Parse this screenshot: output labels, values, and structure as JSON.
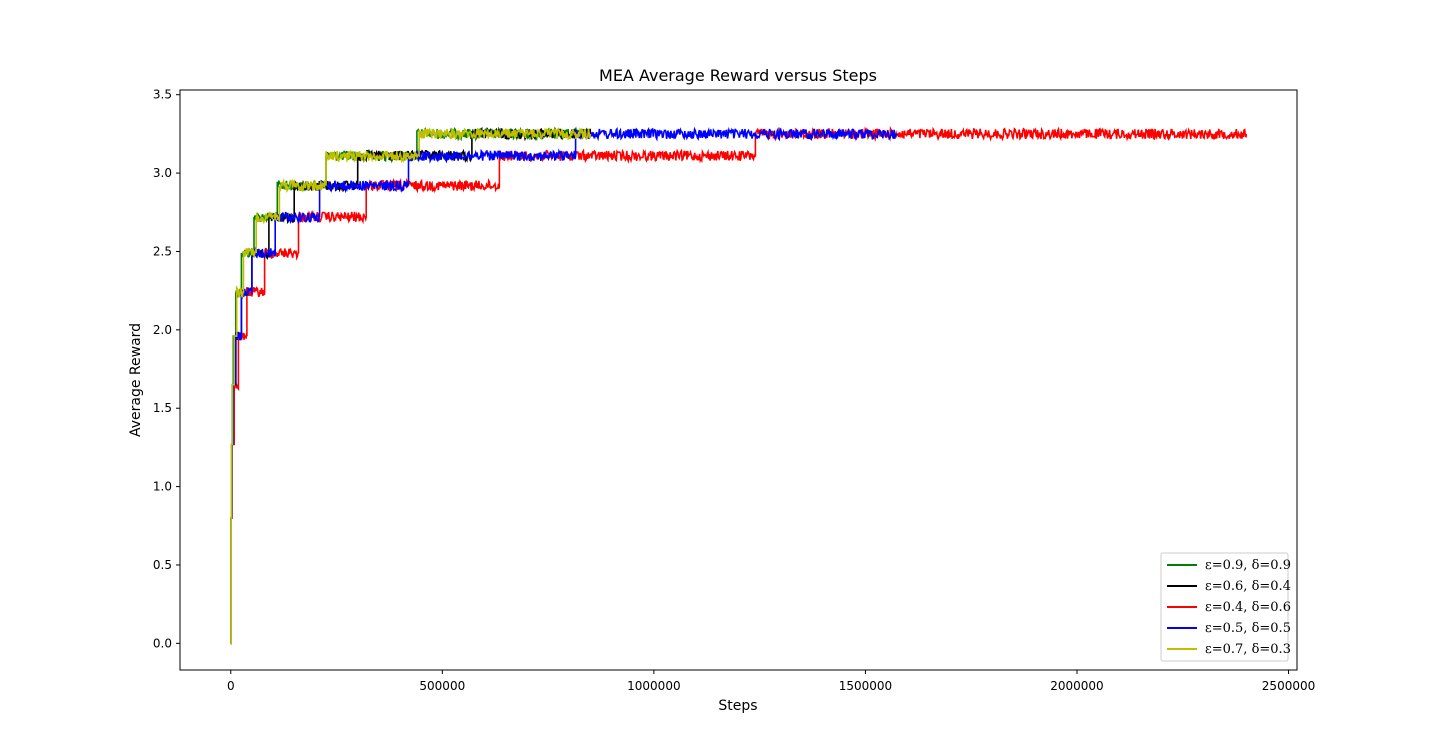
{
  "chart_data": {
    "type": "line",
    "title": "MEA Average Reward versus Steps",
    "xlabel": "Steps",
    "ylabel": "Average Reward",
    "xlim": [
      -120000,
      2520000
    ],
    "ylim": [
      -0.17,
      3.53
    ],
    "xticks": [
      0,
      500000,
      1000000,
      1500000,
      2000000,
      2500000
    ],
    "xtick_labels": [
      "0",
      "500000",
      "1000000",
      "1500000",
      "2000000",
      "2500000"
    ],
    "yticks": [
      0.0,
      0.5,
      1.0,
      1.5,
      2.0,
      2.5,
      3.0,
      3.5
    ],
    "ytick_labels": [
      "0.0",
      "0.5",
      "1.0",
      "1.5",
      "2.0",
      "2.5",
      "3.0",
      "3.5"
    ],
    "grid": false,
    "legend_position": "lower-right",
    "levels": [
      0,
      0.8,
      1.27,
      1.65,
      1.96,
      2.24,
      2.49,
      2.72,
      2.92,
      3.11,
      3.25
    ],
    "series": [
      {
        "name": "ε=0.9, δ=0.9",
        "color": "#008000",
        "step_ends": [
          1000,
          2000,
          3500,
          6000,
          12000,
          25000,
          55000,
          110000,
          225000,
          440000,
          850000
        ]
      },
      {
        "name": "ε=0.6, δ=0.4",
        "color": "#000000",
        "step_ends": [
          1000,
          3000,
          6000,
          12000,
          25000,
          50000,
          90000,
          150000,
          300000,
          570000,
          850000
        ]
      },
      {
        "name": "ε=0.4, δ=0.6",
        "color": "#ff0000",
        "step_ends": [
          1000,
          3000,
          8000,
          18000,
          38000,
          80000,
          160000,
          320000,
          635000,
          1240000,
          2400000
        ]
      },
      {
        "name": "ε=0.5, δ=0.5",
        "color": "#0000ff",
        "step_ends": [
          1000,
          2500,
          6000,
          12000,
          25000,
          50000,
          105000,
          210000,
          420000,
          815000,
          1575000
        ]
      },
      {
        "name": "ε=0.7, δ=0.3",
        "color": "#bfbf00",
        "step_ends": [
          1000,
          2000,
          4000,
          8000,
          14000,
          30000,
          60000,
          115000,
          225000,
          445000,
          850000
        ]
      }
    ]
  }
}
